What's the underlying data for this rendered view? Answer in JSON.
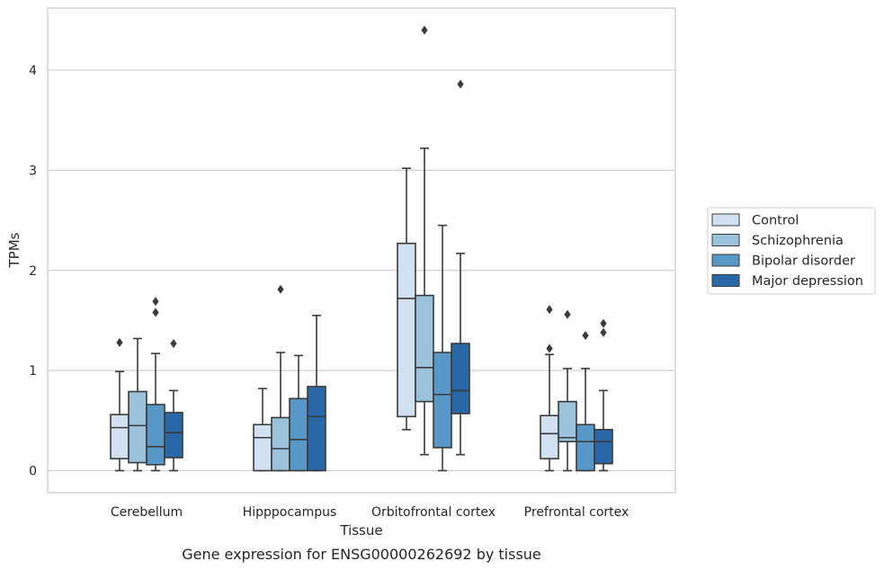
{
  "chart_data": {
    "type": "boxplot",
    "caption": "Gene expression for ENSG00000262692 by tissue",
    "xlabel": "Tissue",
    "ylabel": "TPMs",
    "ylim": [
      -0.22,
      4.62
    ],
    "yticks": [
      0,
      1,
      2,
      3,
      4
    ],
    "grid": "horizontal",
    "legend_placement": "right",
    "categories": [
      "Cerebellum",
      "Hipppocampus",
      "Orbitofrontal cortex",
      "Prefrontal cortex"
    ],
    "series": [
      {
        "name": "Control",
        "color": "#d2e1f1",
        "boxes": [
          {
            "whislo": 0.0,
            "q1": 0.12,
            "med": 0.43,
            "q3": 0.56,
            "whishi": 0.99,
            "fliers": [
              1.28
            ]
          },
          {
            "whislo": 0.0,
            "q1": 0.0,
            "med": 0.33,
            "q3": 0.46,
            "whishi": 0.82,
            "fliers": []
          },
          {
            "whislo": 0.41,
            "q1": 0.54,
            "med": 1.72,
            "q3": 2.27,
            "whishi": 3.02,
            "fliers": []
          },
          {
            "whislo": 0.0,
            "q1": 0.12,
            "med": 0.37,
            "q3": 0.55,
            "whishi": 1.16,
            "fliers": [
              1.22,
              1.61
            ]
          }
        ]
      },
      {
        "name": "Schizophrenia",
        "color": "#9ac2dc",
        "boxes": [
          {
            "whislo": 0.0,
            "q1": 0.08,
            "med": 0.45,
            "q3": 0.79,
            "whishi": 1.32,
            "fliers": []
          },
          {
            "whislo": 0.0,
            "q1": 0.0,
            "med": 0.22,
            "q3": 0.53,
            "whishi": 1.18,
            "fliers": [
              1.81
            ]
          },
          {
            "whislo": 0.16,
            "q1": 0.69,
            "med": 1.03,
            "q3": 1.75,
            "whishi": 3.22,
            "fliers": [
              4.4
            ]
          },
          {
            "whislo": 0.0,
            "q1": 0.29,
            "med": 0.33,
            "q3": 0.69,
            "whishi": 1.02,
            "fliers": [
              1.56
            ]
          }
        ]
      },
      {
        "name": "Bipolar disorder",
        "color": "#5898c8",
        "boxes": [
          {
            "whislo": 0.0,
            "q1": 0.06,
            "med": 0.24,
            "q3": 0.66,
            "whishi": 1.17,
            "fliers": [
              1.58,
              1.69
            ]
          },
          {
            "whislo": 0.0,
            "q1": 0.0,
            "med": 0.31,
            "q3": 0.72,
            "whishi": 1.15,
            "fliers": []
          },
          {
            "whislo": 0.0,
            "q1": 0.23,
            "med": 0.76,
            "q3": 1.18,
            "whishi": 2.45,
            "fliers": []
          },
          {
            "whislo": 0.0,
            "q1": 0.0,
            "med": 0.29,
            "q3": 0.46,
            "whishi": 1.02,
            "fliers": [
              1.35
            ]
          }
        ]
      },
      {
        "name": "Major depression",
        "color": "#2967a6",
        "boxes": [
          {
            "whislo": 0.0,
            "q1": 0.13,
            "med": 0.38,
            "q3": 0.58,
            "whishi": 0.8,
            "fliers": [
              1.27
            ]
          },
          {
            "whislo": 0.0,
            "q1": 0.0,
            "med": 0.54,
            "q3": 0.84,
            "whishi": 1.55,
            "fliers": []
          },
          {
            "whislo": 0.16,
            "q1": 0.57,
            "med": 0.8,
            "q3": 1.27,
            "whishi": 2.17,
            "fliers": [
              3.86
            ]
          },
          {
            "whislo": 0.0,
            "q1": 0.07,
            "med": 0.29,
            "q3": 0.41,
            "whishi": 0.8,
            "fliers": [
              1.38,
              1.47
            ]
          }
        ]
      }
    ]
  }
}
